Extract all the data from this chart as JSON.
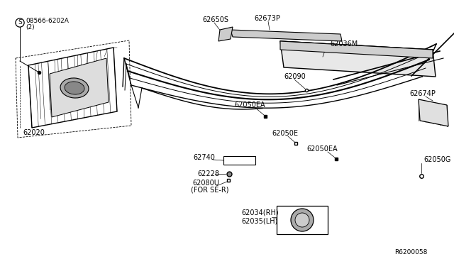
{
  "bg_color": "#ffffff",
  "diagram_id": "R6200058",
  "font_size": 7,
  "line_color": "#000000",
  "labels": {
    "screw_sym": "S",
    "screw_text1": "08566-6202A",
    "screw_text2": "(2)",
    "p62020": "62020",
    "p62650S": "62650S",
    "p62673P": "62673P",
    "p62036M": "62036M",
    "p62090": "62090",
    "p62050EA_1": "62050EA",
    "p62050E": "62050E",
    "p62050EA_2": "62050EA",
    "p62674P": "62674P",
    "p62050G": "62050G",
    "p62740": "62740",
    "p62228": "62228",
    "p62080U_1": "62080U",
    "p62080U_2": "(FOR SE-R)",
    "p62034": "62034(RH)",
    "p62035": "62035(LH)"
  }
}
